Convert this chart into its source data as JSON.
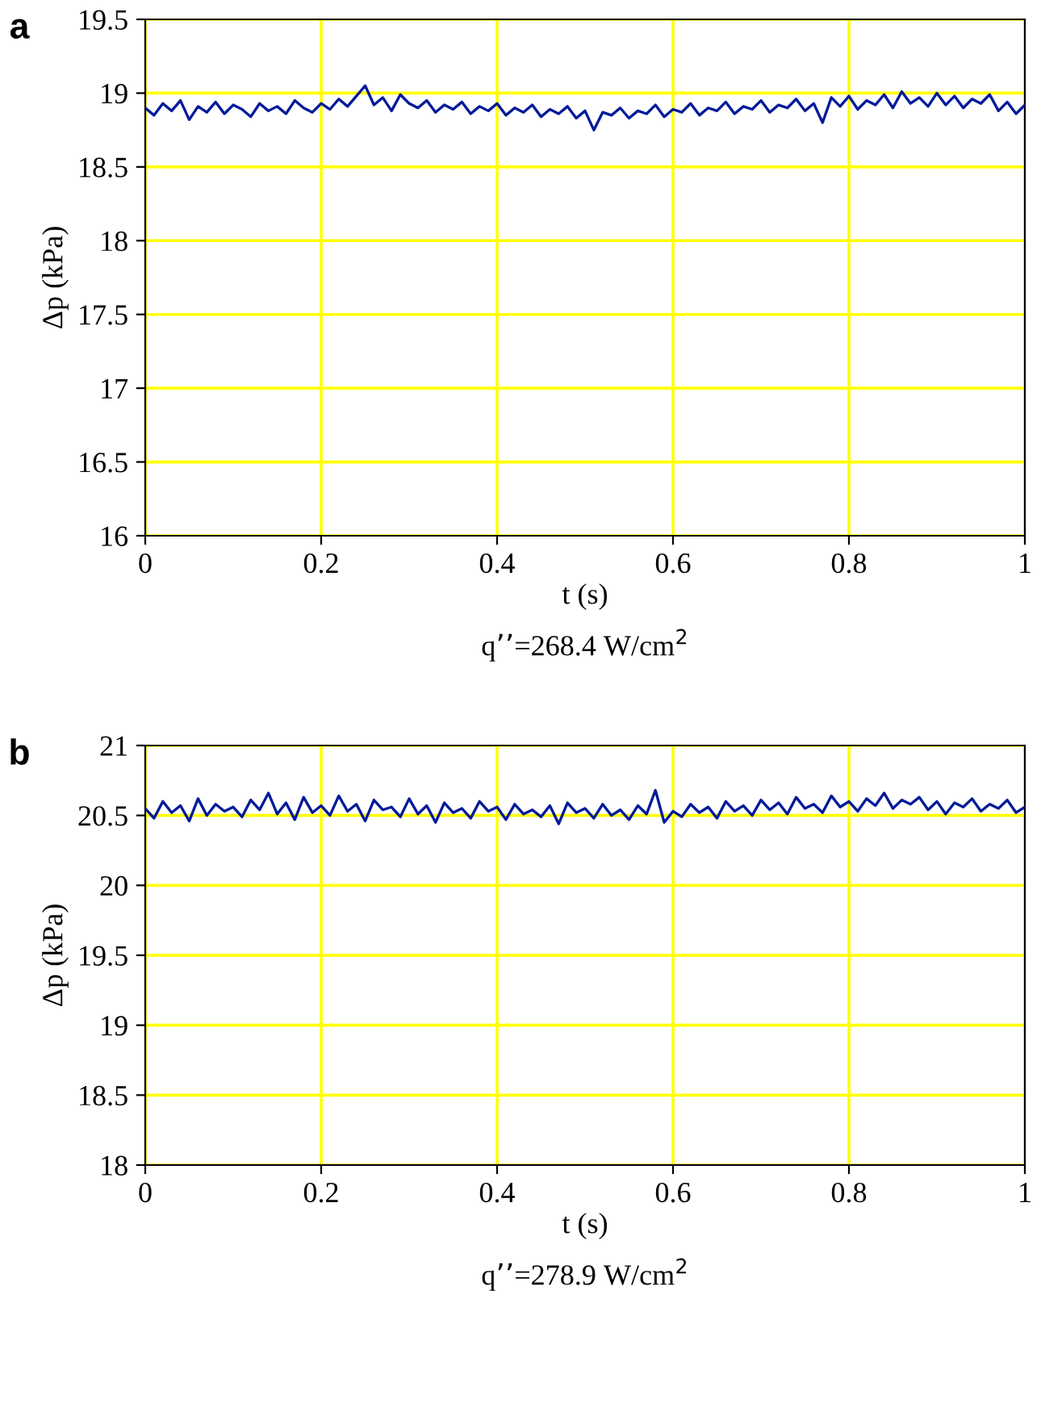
{
  "chart_data": [
    {
      "type": "line",
      "annotations": [
        "a",
        "q’’=268.4 W/cm$^{2}$"
      ],
      "xlabel": "t (s)",
      "ylabel": "Δp (kPa)",
      "x": [
        0,
        0.01,
        0.02,
        0.03,
        0.04,
        0.05,
        0.06,
        0.07,
        0.08,
        0.09,
        0.1,
        0.11,
        0.12,
        0.13,
        0.14,
        0.15,
        0.16,
        0.17,
        0.18,
        0.19,
        0.2,
        0.21,
        0.22,
        0.23,
        0.24,
        0.25,
        0.26,
        0.27,
        0.28,
        0.29,
        0.3,
        0.31,
        0.32,
        0.33,
        0.34,
        0.35,
        0.36,
        0.37,
        0.38,
        0.39,
        0.4,
        0.41,
        0.42,
        0.43,
        0.44,
        0.45,
        0.46,
        0.47,
        0.48,
        0.49,
        0.5,
        0.51,
        0.52,
        0.53,
        0.54,
        0.55,
        0.56,
        0.57,
        0.58,
        0.59,
        0.6,
        0.61,
        0.62,
        0.63,
        0.64,
        0.65,
        0.66,
        0.67,
        0.68,
        0.69,
        0.7,
        0.71,
        0.72,
        0.73,
        0.74,
        0.75,
        0.76,
        0.77,
        0.78,
        0.79,
        0.8,
        0.81,
        0.82,
        0.83,
        0.84,
        0.85,
        0.86,
        0.87,
        0.88,
        0.89,
        0.9,
        0.91,
        0.92,
        0.93,
        0.94,
        0.95,
        0.96,
        0.97,
        0.98,
        0.99,
        1
      ],
      "series": [
        {
          "color": "#001a99",
          "values": [
            18.9,
            18.85,
            18.93,
            18.88,
            18.95,
            18.82,
            18.91,
            18.87,
            18.94,
            18.86,
            18.92,
            18.89,
            18.84,
            18.93,
            18.88,
            18.91,
            18.86,
            18.95,
            18.9,
            18.87,
            18.93,
            18.89,
            18.96,
            18.91,
            18.98,
            19.05,
            18.92,
            18.97,
            18.88,
            18.99,
            18.93,
            18.9,
            18.95,
            18.87,
            18.92,
            18.89,
            18.94,
            18.86,
            18.91,
            18.88,
            18.93,
            18.85,
            18.9,
            18.87,
            18.92,
            18.84,
            18.89,
            18.86,
            18.91,
            18.83,
            18.88,
            18.75,
            18.87,
            18.85,
            18.9,
            18.83,
            18.88,
            18.86,
            18.92,
            18.84,
            18.89,
            18.87,
            18.93,
            18.85,
            18.9,
            18.88,
            18.94,
            18.86,
            18.91,
            18.89,
            18.95,
            18.87,
            18.92,
            18.9,
            18.96,
            18.88,
            18.93,
            18.8,
            18.97,
            18.91,
            18.98,
            18.89,
            18.95,
            18.92,
            18.99,
            18.9,
            19.01,
            18.93,
            18.97,
            18.91,
            19.0,
            18.92,
            18.98,
            18.9,
            18.96,
            18.93,
            18.99,
            18.88,
            18.94,
            18.86,
            18.92
          ]
        }
      ],
      "xlim": [
        0,
        1
      ],
      "xticks": [
        0,
        0.2,
        0.4,
        0.6,
        0.8,
        1
      ],
      "ylim": [
        16,
        19.5
      ],
      "yticks": [
        16,
        16.5,
        17,
        17.5,
        18,
        18.5,
        19,
        19.5
      ],
      "grid": true,
      "marker": "none",
      "line_style": "solid"
    },
    {
      "type": "line",
      "annotations": [
        "b",
        "q’’=278.9 W/cm$^{2}$"
      ],
      "xlabel": "t (s)",
      "ylabel": "Δp (kPa)",
      "x": [
        0,
        0.01,
        0.02,
        0.03,
        0.04,
        0.05,
        0.06,
        0.07,
        0.08,
        0.09,
        0.1,
        0.11,
        0.12,
        0.13,
        0.14,
        0.15,
        0.16,
        0.17,
        0.18,
        0.19,
        0.2,
        0.21,
        0.22,
        0.23,
        0.24,
        0.25,
        0.26,
        0.27,
        0.28,
        0.29,
        0.3,
        0.31,
        0.32,
        0.33,
        0.34,
        0.35,
        0.36,
        0.37,
        0.38,
        0.39,
        0.4,
        0.41,
        0.42,
        0.43,
        0.44,
        0.45,
        0.46,
        0.47,
        0.48,
        0.49,
        0.5,
        0.51,
        0.52,
        0.53,
        0.54,
        0.55,
        0.56,
        0.57,
        0.58,
        0.59,
        0.6,
        0.61,
        0.62,
        0.63,
        0.64,
        0.65,
        0.66,
        0.67,
        0.68,
        0.69,
        0.7,
        0.71,
        0.72,
        0.73,
        0.74,
        0.75,
        0.76,
        0.77,
        0.78,
        0.79,
        0.8,
        0.81,
        0.82,
        0.83,
        0.84,
        0.85,
        0.86,
        0.87,
        0.88,
        0.89,
        0.9,
        0.91,
        0.92,
        0.93,
        0.94,
        0.95,
        0.96,
        0.97,
        0.98,
        0.99,
        1
      ],
      "series": [
        {
          "color": "#001a99",
          "values": [
            20.55,
            20.48,
            20.6,
            20.52,
            20.57,
            20.46,
            20.62,
            20.5,
            20.58,
            20.53,
            20.56,
            20.49,
            20.61,
            20.54,
            20.66,
            20.51,
            20.59,
            20.47,
            20.63,
            20.52,
            20.57,
            20.5,
            20.64,
            20.53,
            20.58,
            20.46,
            20.61,
            20.54,
            20.56,
            20.49,
            20.62,
            20.51,
            20.57,
            20.45,
            20.59,
            20.52,
            20.55,
            20.48,
            20.6,
            20.53,
            20.56,
            20.47,
            20.58,
            20.51,
            20.54,
            20.49,
            20.57,
            20.44,
            20.59,
            20.52,
            20.55,
            20.48,
            20.58,
            20.5,
            20.54,
            20.47,
            20.57,
            20.51,
            20.68,
            20.45,
            20.53,
            20.49,
            20.58,
            20.52,
            20.56,
            20.48,
            20.6,
            20.53,
            20.57,
            20.5,
            20.61,
            20.54,
            20.59,
            20.51,
            20.63,
            20.55,
            20.58,
            20.52,
            20.64,
            20.56,
            20.6,
            20.53,
            20.62,
            20.57,
            20.66,
            20.55,
            20.61,
            20.58,
            20.63,
            20.54,
            20.6,
            20.51,
            20.59,
            20.56,
            20.62,
            20.53,
            20.58,
            20.55,
            20.61,
            20.52,
            20.56
          ]
        }
      ],
      "xlim": [
        0,
        1
      ],
      "xticks": [
        0,
        0.2,
        0.4,
        0.6,
        0.8,
        1
      ],
      "ylim": [
        18,
        21
      ],
      "yticks": [
        18,
        18.5,
        19,
        19.5,
        20,
        20.5,
        21
      ],
      "grid": true,
      "marker": "none",
      "line_style": "solid"
    }
  ]
}
